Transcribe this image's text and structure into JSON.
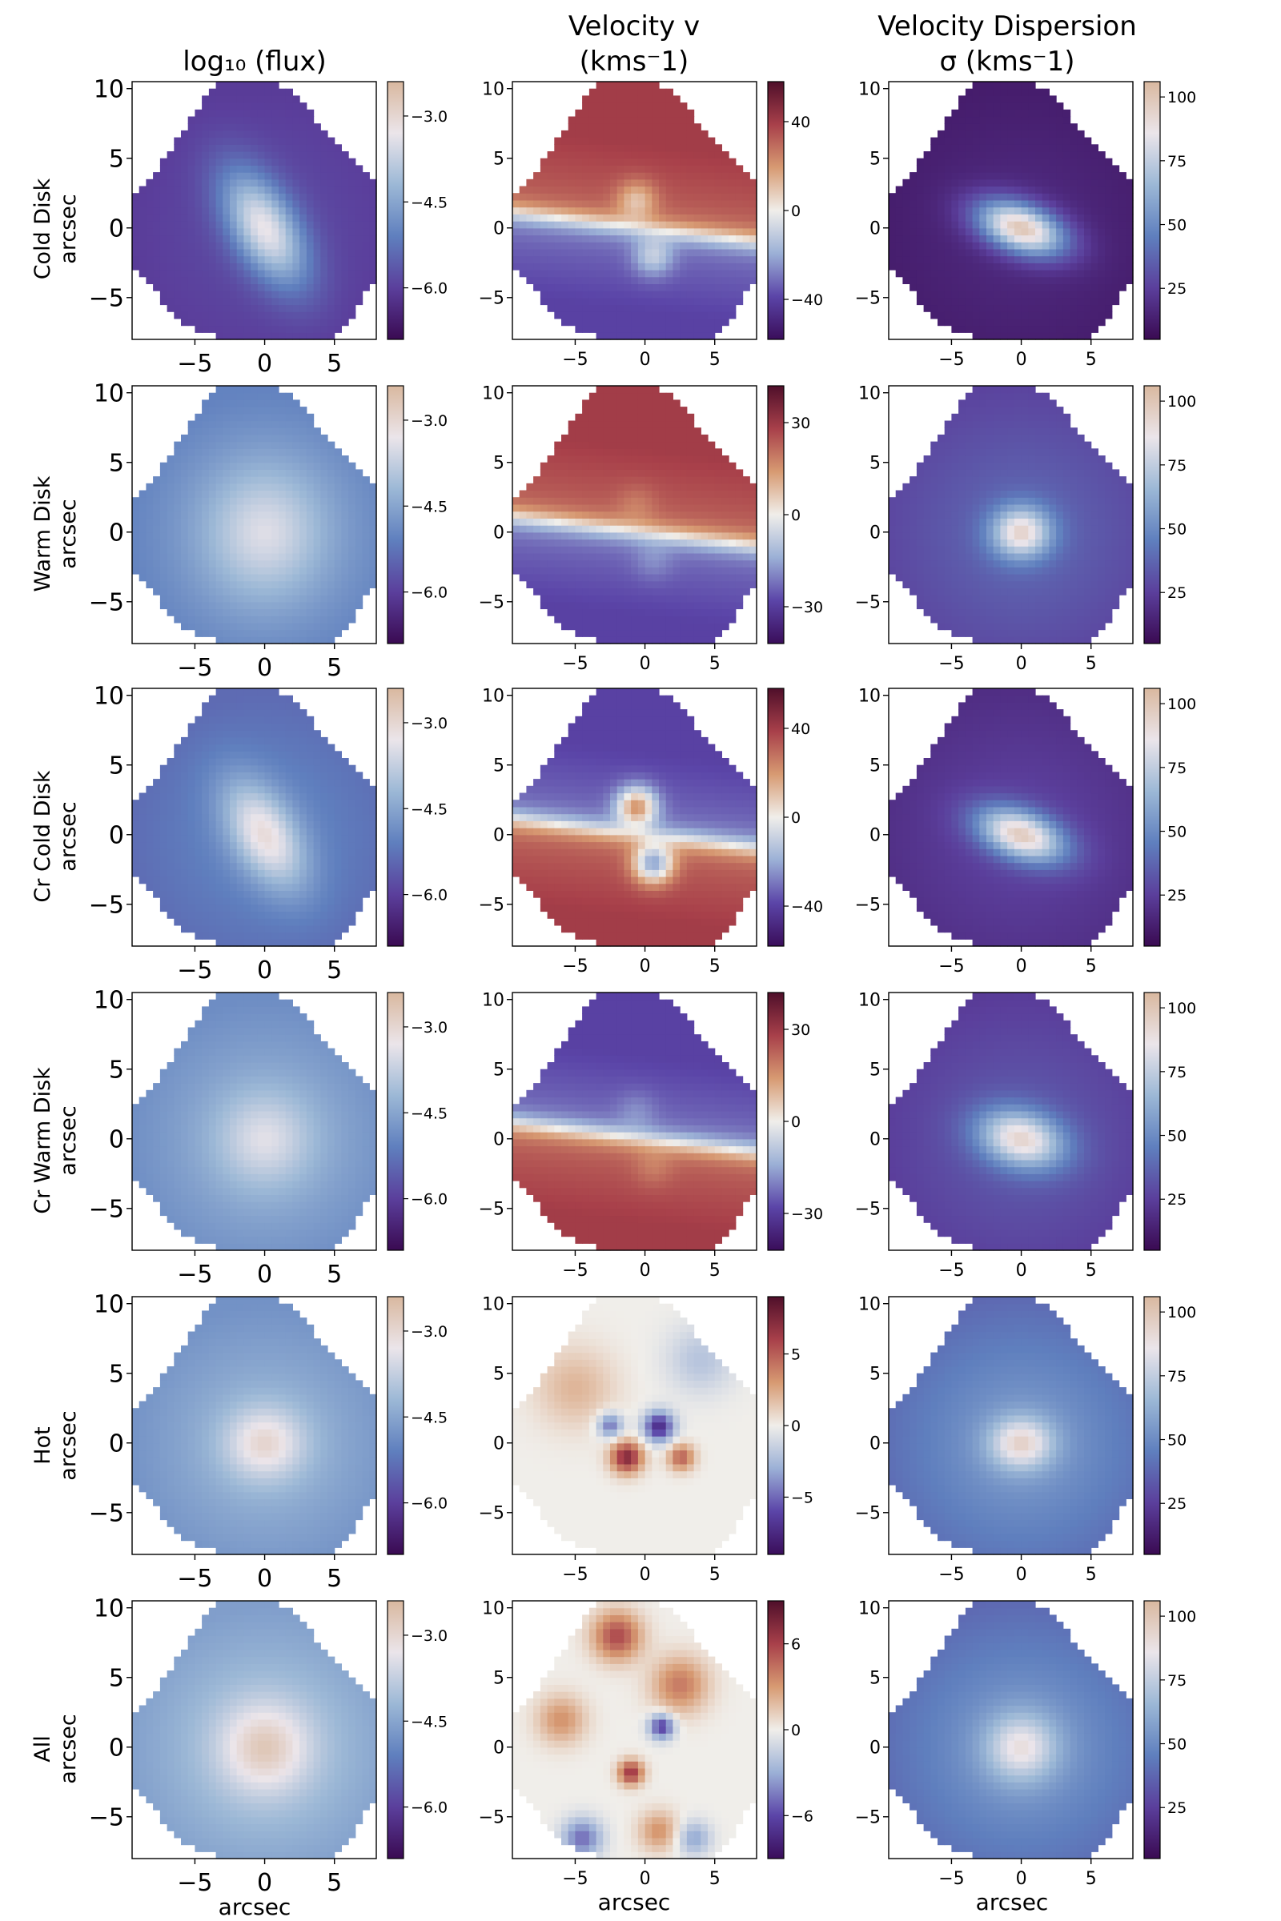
{
  "figure": {
    "column_titles": [
      [
        "log₁₀ (flux)"
      ],
      [
        "Velocity v",
        "(kms⁻1)"
      ],
      [
        "Velocity Dispersion",
        "σ (kms⁻1)"
      ]
    ],
    "row_labels": [
      "Cold Disk",
      "Warm Disk",
      "Cr  Cold Disk",
      "Cr  Warm Disk",
      "Hot",
      "All"
    ],
    "ylabel": "arcsec",
    "xlabel": "arcsec"
  },
  "chart_data": {
    "type": "heatmap",
    "x_range": [
      -9.5,
      8
    ],
    "y_range": [
      -8,
      10.5
    ],
    "x_ticks": [
      -5,
      0,
      5
    ],
    "y_ticks": [
      10,
      5,
      0,
      -5
    ],
    "colormaps": {
      "flux": [
        "#3a0a52",
        "#5b3f9c",
        "#5f7fbe",
        "#9cb8d6",
        "#ebe5ea",
        "#d9b89f"
      ],
      "velocity": [
        "#3a0d5a",
        "#5b45a8",
        "#9bb0d6",
        "#f0eeea",
        "#d79a72",
        "#a8404a",
        "#4f0f2a"
      ],
      "dispersion": [
        "#3a0a52",
        "#5b3f9c",
        "#5f7fbe",
        "#9cb8d6",
        "#ebe5ea",
        "#d9b89f"
      ]
    },
    "panels": [
      [
        {
          "kind": "flux",
          "ticks": [
            "-3.0",
            "-4.5",
            "-6.0"
          ],
          "tick_values": [
            -3.0,
            -4.5,
            -6.0
          ],
          "range": [
            -6.9,
            -2.4
          ],
          "model": {
            "level": 0.25,
            "peak": 0.55,
            "rx": 1.6,
            "ry": 3.2,
            "angle": 30
          }
        },
        {
          "kind": "velocity",
          "ticks": [
            "40",
            "0",
            "-40"
          ],
          "tick_values": [
            40,
            0,
            -40
          ],
          "range": [
            -58,
            58
          ],
          "model": {
            "type": "disk",
            "amp": 55,
            "sign": 1,
            "blob": 0.6
          }
        },
        {
          "kind": "dispersion",
          "ticks": [
            "100",
            "75",
            "50",
            "25"
          ],
          "tick_values": [
            100,
            75,
            50,
            25
          ],
          "range": [
            5,
            106
          ],
          "model": {
            "base": 18,
            "peak": 82,
            "rx": 2.3,
            "ry": 1.2,
            "angle": -20
          }
        }
      ],
      [
        {
          "kind": "flux",
          "ticks": [
            "-3.0",
            "-4.5",
            "-6.0"
          ],
          "tick_values": [
            -3.0,
            -4.5,
            -6.0
          ],
          "range": [
            -6.9,
            -2.4
          ],
          "model": {
            "level": 0.55,
            "peak": 0.22,
            "rx": 3.0,
            "ry": 3.4,
            "angle": 0
          }
        },
        {
          "kind": "velocity",
          "ticks": [
            "30",
            "0",
            "-30"
          ],
          "tick_values": [
            30,
            0,
            -30
          ],
          "range": [
            -42,
            42
          ],
          "model": {
            "type": "disk",
            "amp": 40,
            "sign": 1,
            "blob": 0.2
          }
        },
        {
          "kind": "dispersion",
          "ticks": [
            "100",
            "75",
            "50",
            "25"
          ],
          "tick_values": [
            100,
            75,
            50,
            25
          ],
          "range": [
            5,
            106
          ],
          "model": {
            "base": 40,
            "peak": 55,
            "rx": 1.5,
            "ry": 1.3,
            "angle": 0
          }
        }
      ],
      [
        {
          "kind": "flux",
          "ticks": [
            "-3.0",
            "-4.5",
            "-6.0"
          ],
          "tick_values": [
            -3.0,
            -4.5,
            -6.0
          ],
          "range": [
            -6.9,
            -2.4
          ],
          "model": {
            "level": 0.45,
            "peak": 0.4,
            "rx": 1.6,
            "ry": 3.0,
            "angle": 30
          }
        },
        {
          "kind": "velocity",
          "ticks": [
            "40",
            "0",
            "-40"
          ],
          "tick_values": [
            40,
            0,
            -40
          ],
          "range": [
            -58,
            58
          ],
          "model": {
            "type": "disk",
            "amp": 35,
            "sign": -1,
            "blob": 1.4
          }
        },
        {
          "kind": "dispersion",
          "ticks": [
            "100",
            "75",
            "50",
            "25"
          ],
          "tick_values": [
            100,
            75,
            50,
            25
          ],
          "range": [
            5,
            106
          ],
          "model": {
            "base": 28,
            "peak": 70,
            "rx": 2.3,
            "ry": 1.2,
            "angle": -20
          }
        }
      ],
      [
        {
          "kind": "flux",
          "ticks": [
            "-3.0",
            "-4.5",
            "-6.0"
          ],
          "tick_values": [
            -3.0,
            -4.5,
            -6.0
          ],
          "range": [
            -6.9,
            -2.4
          ],
          "model": {
            "level": 0.6,
            "peak": 0.18,
            "rx": 2.4,
            "ry": 2.4,
            "angle": 0
          }
        },
        {
          "kind": "velocity",
          "ticks": [
            "30",
            "0",
            "-30"
          ],
          "tick_values": [
            30,
            0,
            -30
          ],
          "range": [
            -42,
            42
          ],
          "model": {
            "type": "disk",
            "amp": 40,
            "sign": -1,
            "blob": 0.2
          }
        },
        {
          "kind": "dispersion",
          "ticks": [
            "100",
            "75",
            "50",
            "25"
          ],
          "tick_values": [
            100,
            75,
            50,
            25
          ],
          "range": [
            5,
            106
          ],
          "model": {
            "base": 36,
            "peak": 58,
            "rx": 2.2,
            "ry": 1.4,
            "angle": -15
          }
        }
      ],
      [
        {
          "kind": "flux",
          "ticks": [
            "-3.0",
            "-4.5",
            "-6.0"
          ],
          "tick_values": [
            -3.0,
            -4.5,
            -6.0
          ],
          "range": [
            -6.9,
            -2.4
          ],
          "model": {
            "level": 0.62,
            "peak": 0.26,
            "rx": 2.0,
            "ry": 1.8,
            "angle": 0
          }
        },
        {
          "kind": "velocity",
          "ticks": [
            "5",
            "0",
            "-5"
          ],
          "tick_values": [
            5,
            0,
            -5
          ],
          "range": [
            -9,
            9
          ],
          "model": {
            "type": "hot",
            "amp": 8,
            "sign": 1,
            "blob": 0
          }
        },
        {
          "kind": "dispersion",
          "ticks": [
            "100",
            "75",
            "50",
            "25"
          ],
          "tick_values": [
            100,
            75,
            50,
            25
          ],
          "range": [
            5,
            106
          ],
          "model": {
            "base": 58,
            "peak": 38,
            "rx": 1.6,
            "ry": 1.3,
            "angle": 0
          }
        }
      ],
      [
        {
          "kind": "flux",
          "ticks": [
            "-3.0",
            "-4.5",
            "-6.0"
          ],
          "tick_values": [
            -3.0,
            -4.5,
            -6.0
          ],
          "range": [
            -6.9,
            -2.4
          ],
          "model": {
            "level": 0.68,
            "peak": 0.26,
            "rx": 2.3,
            "ry": 2.3,
            "angle": 0
          }
        },
        {
          "kind": "velocity",
          "ticks": [
            "6",
            "0",
            "-6"
          ],
          "tick_values": [
            6,
            0,
            -6
          ],
          "range": [
            -9,
            9
          ],
          "model": {
            "type": "all",
            "amp": 8,
            "sign": 1,
            "blob": 0
          }
        },
        {
          "kind": "dispersion",
          "ticks": [
            "100",
            "75",
            "50",
            "25"
          ],
          "tick_values": [
            100,
            75,
            50,
            25
          ],
          "range": [
            5,
            106
          ],
          "model": {
            "base": 58,
            "peak": 32,
            "rx": 1.8,
            "ry": 1.7,
            "angle": 0
          }
        }
      ]
    ]
  }
}
